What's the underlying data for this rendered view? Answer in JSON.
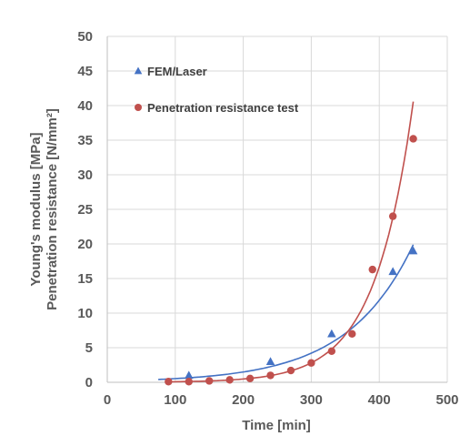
{
  "chart_data": {
    "type": "scatter",
    "title": "",
    "xlabel": "Time [min]",
    "ylabel_lines": [
      "Young's modulus [MPa]",
      "Penetration resistance [N/mm²]"
    ],
    "xlim": [
      0,
      500
    ],
    "ylim": [
      0,
      50
    ],
    "x_ticks": [
      "0",
      "100",
      "200",
      "300",
      "400",
      "500"
    ],
    "y_ticks": [
      "0",
      "5",
      "10",
      "15",
      "20",
      "25",
      "30",
      "35",
      "40",
      "45",
      "50"
    ],
    "grid": true,
    "legend_position": "top-left",
    "series": [
      {
        "name": "FEM/Laser",
        "marker": "triangle",
        "color": "#4472C4",
        "x": [
          120,
          240,
          330,
          420,
          450
        ],
        "y": [
          1.0,
          3.0,
          7.0,
          16.0,
          19.0
        ],
        "trendline": {
          "type": "exponential",
          "x_range": [
            75,
            450
          ],
          "a": 0.188,
          "b": 0.01036
        }
      },
      {
        "name": "Penetration resistance test",
        "marker": "circle",
        "color": "#C0504D",
        "x": [
          90,
          120,
          150,
          180,
          210,
          240,
          270,
          300,
          330,
          360,
          390,
          420,
          450
        ],
        "y": [
          0.1,
          0.1,
          0.2,
          0.35,
          0.55,
          1.0,
          1.7,
          2.8,
          4.5,
          7.0,
          16.3,
          24.0,
          35.2
        ],
        "trendline": {
          "type": "exponential",
          "x_range": [
            90,
            450
          ],
          "a": 0.0136,
          "b": 0.01778
        }
      }
    ]
  }
}
